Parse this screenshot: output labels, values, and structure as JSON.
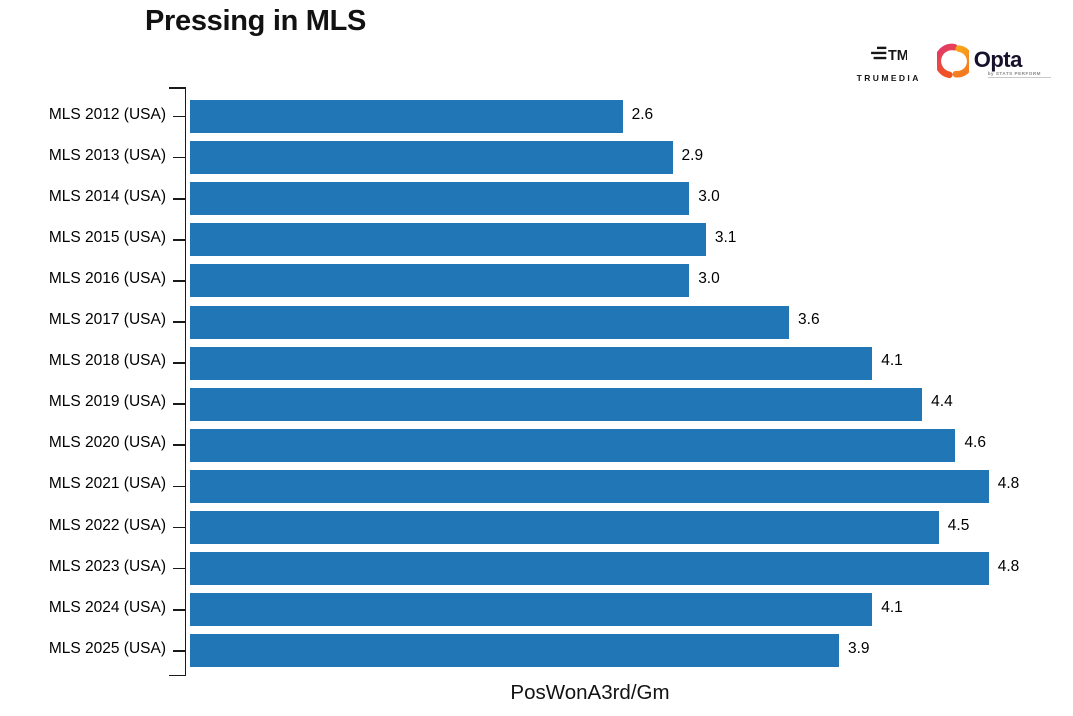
{
  "title": "Pressing in MLS",
  "branding": {
    "trumedia": {
      "wordmark": "TRUMEDIA"
    },
    "opta": {
      "wordmark": "Opta",
      "byline": "by STATS PERFORM"
    }
  },
  "chart_data": {
    "type": "bar",
    "orientation": "horizontal",
    "title": "Pressing in MLS",
    "xlabel": "PosWonA3rd/Gm",
    "ylabel": "",
    "xlim": [
      0,
      4.8
    ],
    "grid": false,
    "legend": null,
    "bar_color": "#2176b5",
    "categories": [
      "MLS 2012 (USA)",
      "MLS 2013 (USA)",
      "MLS 2014 (USA)",
      "MLS 2015 (USA)",
      "MLS 2016 (USA)",
      "MLS 2017 (USA)",
      "MLS 2018 (USA)",
      "MLS 2019 (USA)",
      "MLS 2020 (USA)",
      "MLS 2021 (USA)",
      "MLS 2022 (USA)",
      "MLS 2023 (USA)",
      "MLS 2024 (USA)",
      "MLS 2025 (USA)"
    ],
    "values": [
      2.6,
      2.9,
      3.0,
      3.1,
      3.0,
      3.6,
      4.1,
      4.4,
      4.6,
      4.8,
      4.5,
      4.8,
      4.1,
      3.9
    ],
    "value_labels": [
      "2.6",
      "2.9",
      "3.0",
      "3.1",
      "3.0",
      "3.6",
      "4.1",
      "4.4",
      "4.6",
      "4.8",
      "4.5",
      "4.8",
      "4.1",
      "3.9"
    ]
  }
}
